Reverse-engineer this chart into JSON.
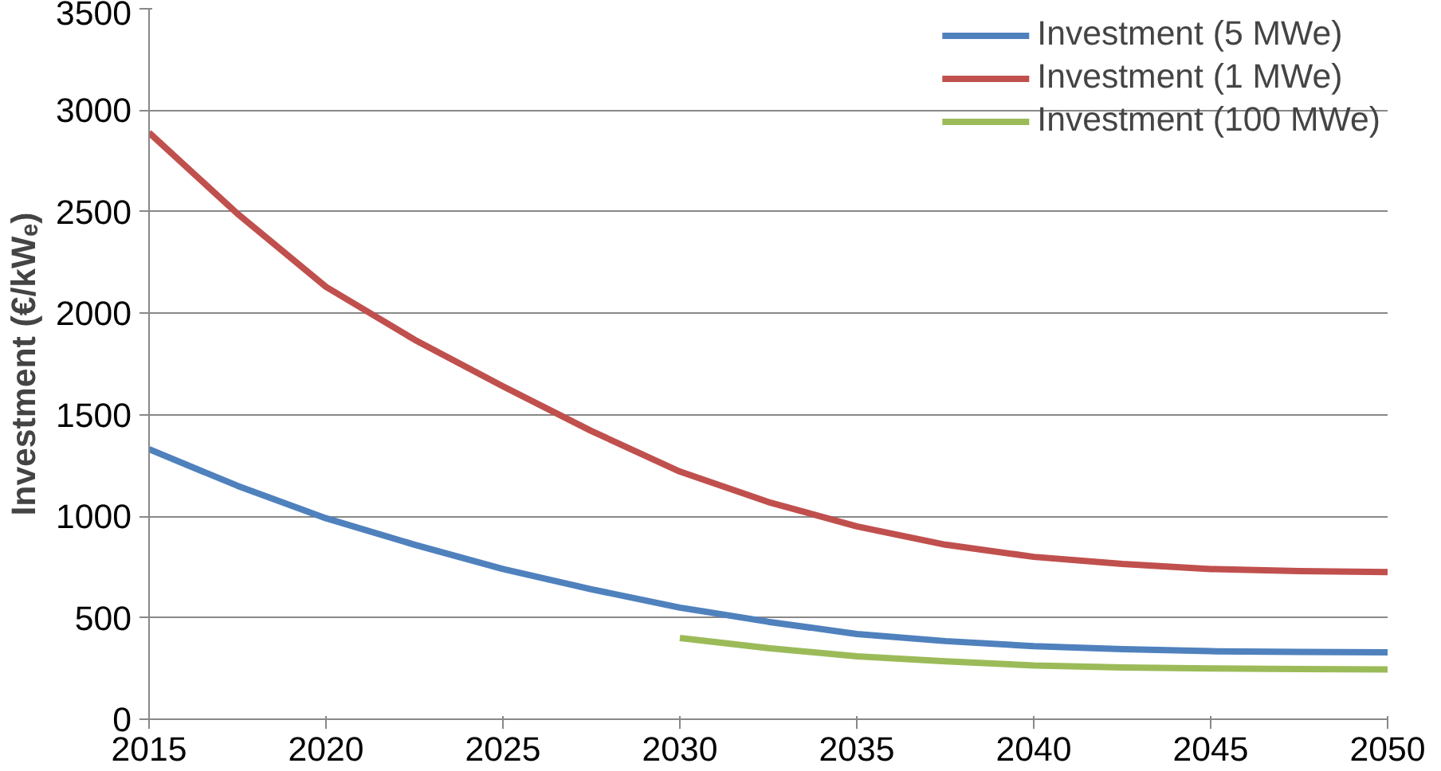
{
  "chart_data": {
    "type": "line",
    "ylabel": "Investment (€/kWₑ)",
    "xlim": [
      2015,
      2050
    ],
    "xticks": [
      2015,
      2020,
      2025,
      2030,
      2035,
      2040,
      2045,
      2050
    ],
    "ylim": [
      0,
      3500
    ],
    "yticks": [
      0,
      500,
      1000,
      1500,
      2000,
      2500,
      3000,
      3500
    ],
    "grid": "y",
    "legend": "top right",
    "line_style": "solid",
    "marker": "none",
    "x": [
      2015,
      2017.5,
      2020,
      2022.5,
      2025,
      2027.5,
      2030,
      2032.5,
      2035,
      2037.5,
      2040,
      2042.5,
      2045,
      2047.5,
      2050
    ],
    "series": [
      {
        "name": "Investment (5 MWe)",
        "color": "#4f81bd",
        "values": [
          1330,
          1150,
          990,
          860,
          740,
          640,
          550,
          480,
          420,
          385,
          360,
          345,
          335,
          332,
          330
        ]
      },
      {
        "name": "Investment (1 MWe)",
        "color": "#c0504d",
        "values": [
          2890,
          2490,
          2130,
          1870,
          1640,
          1420,
          1220,
          1070,
          950,
          860,
          800,
          765,
          740,
          730,
          725
        ]
      },
      {
        "name": "Investment (100 MWe)",
        "color": "#9bbb59",
        "x": [
          2030,
          2032.5,
          2035,
          2037.5,
          2040,
          2042.5,
          2045,
          2047.5,
          2050
        ],
        "values": [
          400,
          350,
          310,
          285,
          265,
          255,
          250,
          247,
          245
        ]
      }
    ]
  }
}
